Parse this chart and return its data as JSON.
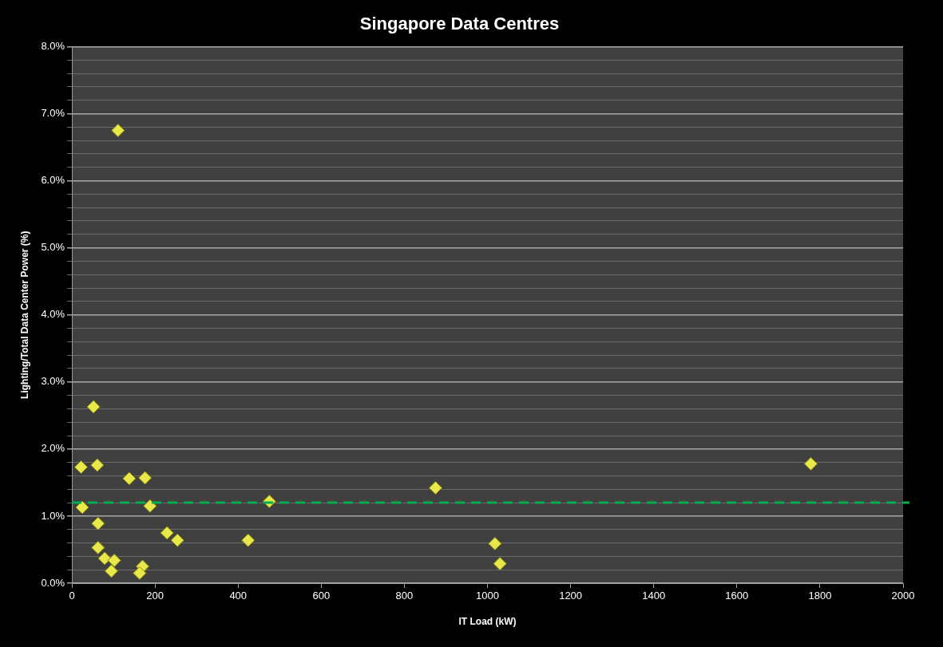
{
  "chart_data": {
    "type": "scatter",
    "title": "Singapore Data Centres",
    "xlabel": "IT Load (kW)",
    "ylabel": "Lighting/Total Data Center Power (%)",
    "series": [
      {
        "color": "#e8e84a",
        "x": [
          111,
          52,
          22,
          61,
          138,
          176,
          25,
          188,
          475,
          63,
          229,
          254,
          424,
          63,
          79,
          102,
          95,
          170,
          163,
          875,
          1018,
          1030,
          1778
        ],
        "values": [
          6.75,
          2.63,
          1.73,
          1.76,
          1.56,
          1.57,
          1.13,
          1.15,
          1.22,
          0.89,
          0.75,
          0.64,
          0.64,
          0.53,
          0.37,
          0.34,
          0.18,
          0.25,
          0.15,
          1.42,
          0.59,
          0.29,
          1.78
        ]
      }
    ],
    "marker": "diamond",
    "grid": "y",
    "legend": false,
    "xlim": [
      0,
      2000
    ],
    "xticks": [
      0,
      200,
      400,
      600,
      800,
      1000,
      1200,
      1400,
      1600,
      1800,
      2000
    ],
    "ylim": [
      0,
      8
    ],
    "yticks": [
      {
        "value": 0,
        "label": "0.0%"
      },
      {
        "value": 0.2,
        "label": null
      },
      {
        "value": 0.4,
        "label": null
      },
      {
        "value": 0.6,
        "label": null
      },
      {
        "value": 0.8,
        "label": null
      },
      {
        "value": 1,
        "label": "1.0%"
      },
      {
        "value": 1.2,
        "label": null
      },
      {
        "value": 1.4,
        "label": null
      },
      {
        "value": 1.6,
        "label": null
      },
      {
        "value": 1.8,
        "label": null
      },
      {
        "value": 2,
        "label": "2.0%"
      },
      {
        "value": 2.2,
        "label": null
      },
      {
        "value": 2.4,
        "label": null
      },
      {
        "value": 2.6,
        "label": null
      },
      {
        "value": 2.8,
        "label": null
      },
      {
        "value": 3,
        "label": "3.0%"
      },
      {
        "value": 3.2,
        "label": null
      },
      {
        "value": 3.4,
        "label": null
      },
      {
        "value": 3.6,
        "label": null
      },
      {
        "value": 3.8,
        "label": null
      },
      {
        "value": 4,
        "label": "4.0%"
      },
      {
        "value": 4.2,
        "label": null
      },
      {
        "value": 4.4,
        "label": null
      },
      {
        "value": 4.6,
        "label": null
      },
      {
        "value": 4.8,
        "label": null
      },
      {
        "value": 5,
        "label": "5.0%"
      },
      {
        "value": 5.2,
        "label": null
      },
      {
        "value": 5.4,
        "label": null
      },
      {
        "value": 5.6,
        "label": null
      },
      {
        "value": 5.8,
        "label": null
      },
      {
        "value": 6,
        "label": "6.0%"
      },
      {
        "value": 6.2,
        "label": null
      },
      {
        "value": 6.4,
        "label": null
      },
      {
        "value": 6.6,
        "label": null
      },
      {
        "value": 6.8,
        "label": null
      },
      {
        "value": 7,
        "label": "7.0%"
      },
      {
        "value": 7.2,
        "label": null
      },
      {
        "value": 7.4,
        "label": null
      },
      {
        "value": 7.6,
        "label": null
      },
      {
        "value": 7.8,
        "label": null
      },
      {
        "value": 8,
        "label": "8.0%"
      }
    ],
    "ref_lines": [
      {
        "axis": "y",
        "value": 1.2,
        "color": "#00b050",
        "line_style": "dashed"
      }
    ]
  }
}
